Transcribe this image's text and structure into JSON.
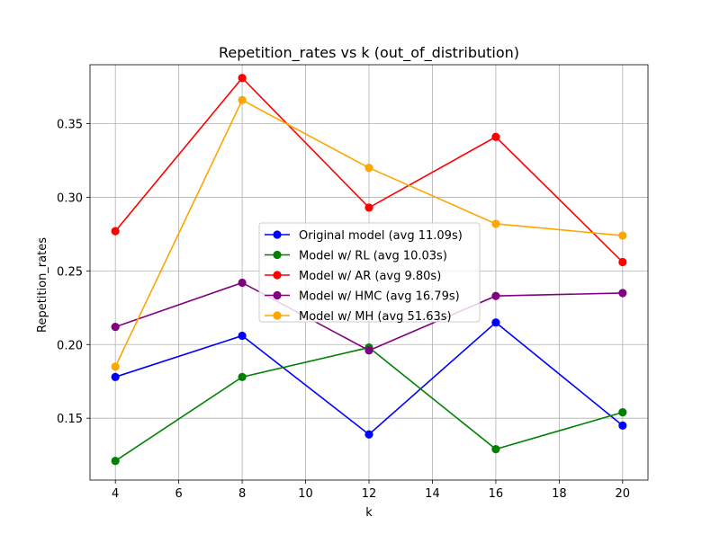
{
  "chart_data": {
    "type": "line",
    "title": "Repetition_rates vs k (out_of_distribution)",
    "xlabel": "k",
    "ylabel": "Repetition_rates",
    "x": [
      4,
      8,
      12,
      16,
      20
    ],
    "xlim": [
      3.2,
      20.8
    ],
    "ylim": [
      0.108,
      0.39
    ],
    "xticks": [
      4,
      6,
      8,
      10,
      12,
      14,
      16,
      18,
      20
    ],
    "yticks": [
      0.15,
      0.2,
      0.25,
      0.3,
      0.35
    ],
    "ytick_labels": [
      "0.15",
      "0.20",
      "0.25",
      "0.30",
      "0.35"
    ],
    "grid": true,
    "legend_position": "center",
    "series": [
      {
        "name": "Original model (avg 11.09s)",
        "color": "#0000ff",
        "values": [
          0.178,
          0.206,
          0.139,
          0.215,
          0.145
        ]
      },
      {
        "name": "Model w/ RL (avg 10.03s)",
        "color": "#008000",
        "values": [
          0.121,
          0.178,
          0.198,
          0.129,
          0.154
        ]
      },
      {
        "name": "Model w/ AR (avg 9.80s)",
        "color": "#ff0000",
        "values": [
          0.277,
          0.381,
          0.293,
          0.341,
          0.256
        ]
      },
      {
        "name": "Model w/ HMC (avg 16.79s)",
        "color": "#800080",
        "values": [
          0.212,
          0.242,
          0.196,
          0.233,
          0.235
        ]
      },
      {
        "name": "Model w/ MH (avg 51.63s)",
        "color": "#ffa500",
        "values": [
          0.185,
          0.366,
          0.32,
          0.282,
          0.274
        ]
      }
    ]
  }
}
